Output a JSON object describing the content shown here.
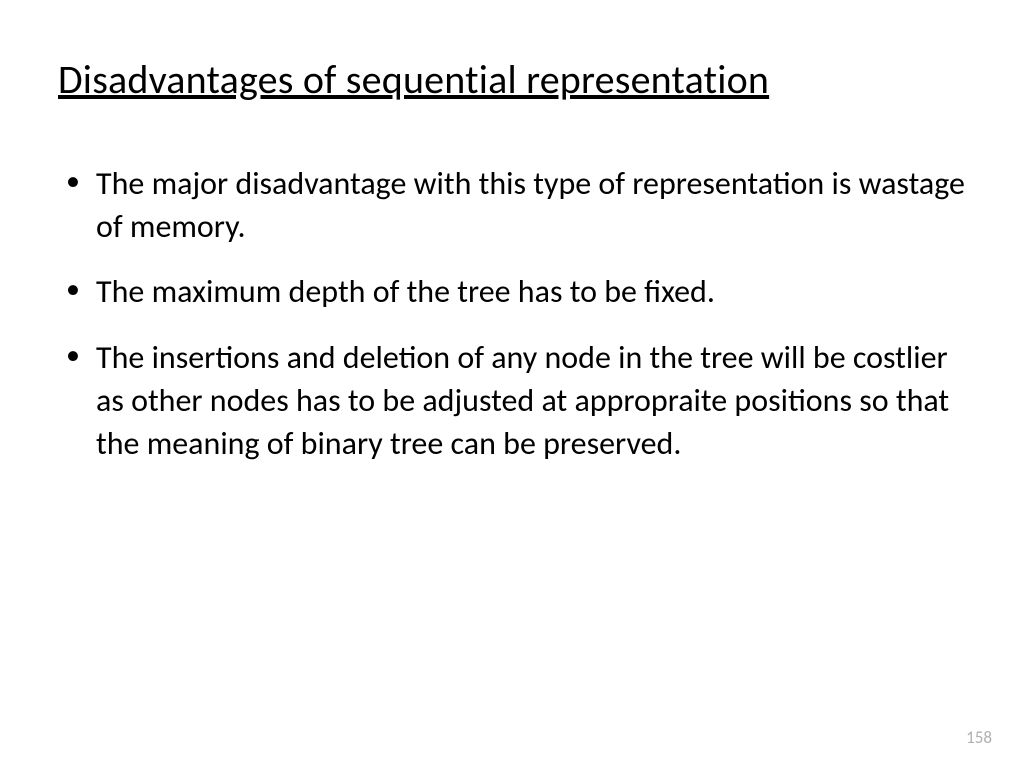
{
  "slide": {
    "title": "Disadvantages of sequential representation",
    "bullets": [
      "The major disadvantage with this type of representation is wastage of memory.",
      "The maximum depth of the tree has to be fixed.",
      "The insertions and deletion of any node in the tree will be costlier as other nodes has to be adjusted at appropraite positions so that the meaning of binary tree can be preserved."
    ],
    "page_number": "158"
  },
  "style": {
    "title_fontsize": 40,
    "title_underline": true,
    "body_fontsize": 32,
    "text_color": "#000000",
    "background_color": "#ffffff",
    "page_number_color": "#b0b0b0",
    "page_number_fontsize": 17,
    "font_family": "Calibri"
  }
}
